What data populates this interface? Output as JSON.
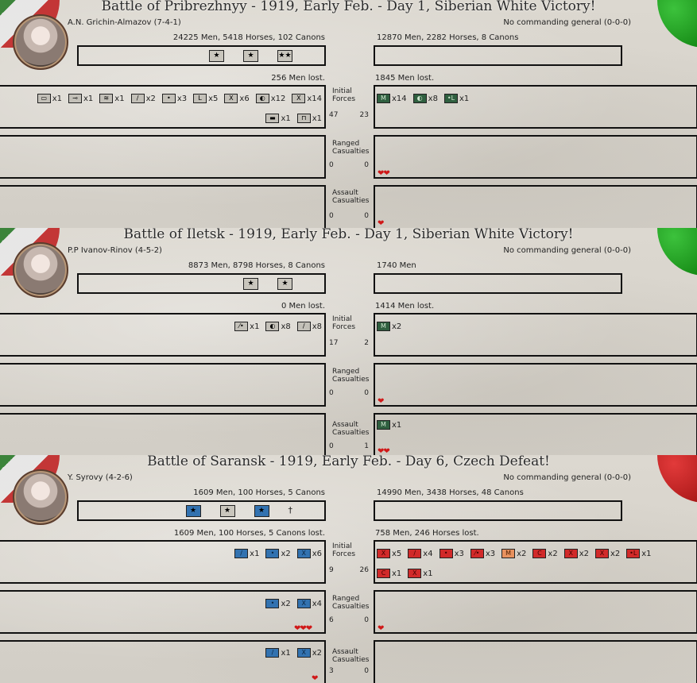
{
  "battles": [
    {
      "title": "Battle of Pribrezhnyy - 1919, Early Feb. - Day 1, Siberian White Victory!",
      "left_commander": "A.N. Grichin-Almazov (7-4-1)",
      "right_commander": "No commanding general (0-0-0)",
      "left_strength": "24225 Men, 5418 Horses, 102 Canons",
      "right_strength": "12870 Men, 2282 Horses, 8 Canons",
      "left_lost": "256 Men lost.",
      "right_lost": "1845 Men lost.",
      "initial_label": "Initial\nForces",
      "ranged_label": "Ranged\nCasualties",
      "assault_label": "Assault\nCasualties",
      "initial_nums": [
        "47",
        "23"
      ],
      "ranged_nums": [
        "0",
        "0"
      ],
      "assault_nums": [
        "0",
        "0"
      ],
      "left_units_row1": [
        {
          "sym": "▭",
          "count": "x1"
        },
        {
          "sym": "⊸",
          "count": "x1"
        },
        {
          "sym": "≋",
          "count": "x1"
        },
        {
          "sym": "/",
          "count": "x2"
        },
        {
          "sym": "•",
          "count": "x3"
        },
        {
          "sym": "L",
          "count": "x5"
        },
        {
          "sym": "X",
          "count": "x6"
        },
        {
          "sym": "◐",
          "count": "x12"
        },
        {
          "sym": "X",
          "count": "x14"
        }
      ],
      "left_units_row2": [
        {
          "sym": "▬",
          "count": "x1"
        },
        {
          "sym": "⊓",
          "count": "x1"
        }
      ],
      "right_units": [
        {
          "sym": "M",
          "count": "x14"
        },
        {
          "sym": "◐",
          "count": "x8"
        },
        {
          "sym": "•L",
          "count": "x1"
        }
      ],
      "right_ranged_hearts": "❤❤",
      "right_assault_hearts": "❤"
    },
    {
      "title": "Battle of Iletsk - 1919, Early Feb. - Day 1, Siberian White Victory!",
      "left_commander": "P.P Ivanov-Rinov (4-5-2)",
      "right_commander": "No commanding general (0-0-0)",
      "left_strength": "8873 Men, 8798 Horses, 8 Canons",
      "right_strength": "1740 Men",
      "left_lost": "0 Men lost.",
      "right_lost": "1414 Men lost.",
      "initial_label": "Initial\nForces",
      "ranged_label": "Ranged\nCasualties",
      "assault_label": "Assault\nCasualties",
      "initial_nums": [
        "17",
        "2"
      ],
      "ranged_nums": [
        "0",
        "0"
      ],
      "assault_nums": [
        "0",
        "1"
      ],
      "left_units": [
        {
          "sym": "⁄•",
          "count": "x1"
        },
        {
          "sym": "◐",
          "count": "x8"
        },
        {
          "sym": "/",
          "count": "x8"
        }
      ],
      "right_units": [
        {
          "sym": "M",
          "count": "x2"
        }
      ],
      "right_assault_units": [
        {
          "sym": "M",
          "count": "x1"
        }
      ],
      "right_ranged_hearts": "❤",
      "right_assault_hearts": "❤❤"
    },
    {
      "title": "Battle of Saransk - 1919, Early Feb. - Day 6, Czech Defeat!",
      "left_commander": "Y. Syrovy (4-2-6)",
      "right_commander": "No commanding general (0-0-0)",
      "left_strength": "1609 Men, 100 Horses, 5 Canons",
      "right_strength": "14990 Men, 3438 Horses, 48 Canons",
      "left_lost": "1609 Men, 100 Horses, 5 Canons lost.",
      "right_lost": "758 Men, 246 Horses lost.",
      "initial_label": "Initial\nForces",
      "ranged_label": "Ranged\nCasualties",
      "assault_label": "Assault\nCasualties",
      "initial_nums": [
        "9",
        "26"
      ],
      "ranged_nums": [
        "6",
        "0"
      ],
      "assault_nums": [
        "3",
        "0"
      ],
      "left_units": [
        {
          "sym": "/",
          "count": "x1"
        },
        {
          "sym": "•",
          "count": "x2"
        },
        {
          "sym": "X",
          "count": "x6"
        }
      ],
      "right_units_row1": [
        {
          "sym": "X",
          "count": "x5",
          "c": "red"
        },
        {
          "sym": "/",
          "count": "x4",
          "c": "red"
        },
        {
          "sym": "•",
          "count": "x3",
          "c": "red"
        },
        {
          "sym": "⁄•",
          "count": "x3",
          "c": "red"
        },
        {
          "sym": "M",
          "count": "x2",
          "c": "orange"
        },
        {
          "sym": "C",
          "count": "x2",
          "c": "red"
        },
        {
          "sym": "X",
          "count": "x2",
          "c": "red"
        },
        {
          "sym": "X",
          "count": "x2",
          "c": "red"
        },
        {
          "sym": "•L",
          "count": "x1",
          "c": "red"
        }
      ],
      "right_units_row2": [
        {
          "sym": "C",
          "count": "x1",
          "c": "red"
        },
        {
          "sym": "X",
          "count": "x1",
          "c": "red"
        }
      ],
      "left_ranged_units": [
        {
          "sym": "•",
          "count": "x2"
        },
        {
          "sym": "X",
          "count": "x4"
        }
      ],
      "left_assault_units": [
        {
          "sym": "/",
          "count": "x1"
        },
        {
          "sym": "X",
          "count": "x2"
        }
      ],
      "left_ranged_hearts": "❤❤❤",
      "left_assault_hearts": "❤",
      "right_ranged_hearts": "❤"
    }
  ]
}
